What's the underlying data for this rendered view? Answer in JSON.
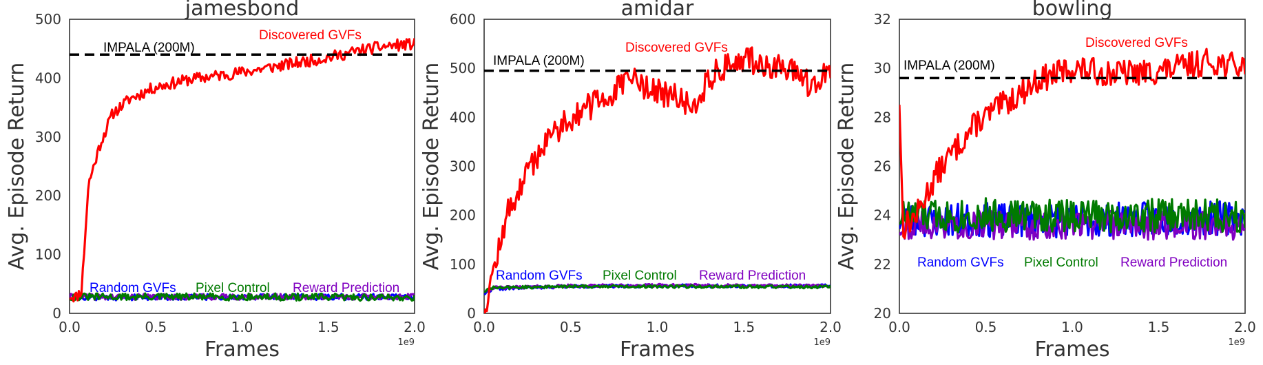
{
  "chart_data": [
    {
      "type": "line",
      "title": "jamesbond",
      "xlabel": "Frames",
      "ylabel": "Avg. Episode Return",
      "x_scale_label": "1e9",
      "xlim": [
        0,
        2.0
      ],
      "ylim": [
        0,
        500
      ],
      "xticks": [
        "0.0",
        "0.5",
        "1.0",
        "1.5",
        "2.0"
      ],
      "yticks": [
        "0",
        "100",
        "200",
        "300",
        "400",
        "500"
      ],
      "baseline": {
        "label": "IMPALA (200M)",
        "value": 440,
        "color": "#000000"
      },
      "series": [
        {
          "name": "Discovered GVFs",
          "color": "#ff0000",
          "noise": 10,
          "seed": 11,
          "points": [
            [
              0.0,
              30
            ],
            [
              0.04,
              28
            ],
            [
              0.07,
              40
            ],
            [
              0.09,
              130
            ],
            [
              0.11,
              220
            ],
            [
              0.13,
              240
            ],
            [
              0.18,
              290
            ],
            [
              0.25,
              340
            ],
            [
              0.35,
              365
            ],
            [
              0.5,
              385
            ],
            [
              0.7,
              398
            ],
            [
              1.0,
              410
            ],
            [
              1.3,
              425
            ],
            [
              1.5,
              435
            ],
            [
              1.7,
              448
            ],
            [
              1.85,
              455
            ],
            [
              2.0,
              458
            ]
          ]
        },
        {
          "name": "Random GVFs",
          "color": "#0000ff",
          "noise": 5,
          "seed": 21,
          "points": [
            [
              0.0,
              27
            ],
            [
              1.0,
              28
            ],
            [
              2.0,
              28
            ]
          ]
        },
        {
          "name": "Pixel Control",
          "color": "#007a00",
          "noise": 6,
          "seed": 31,
          "points": [
            [
              0.0,
              28
            ],
            [
              1.0,
              28
            ],
            [
              2.0,
              27
            ]
          ]
        },
        {
          "name": "Reward Prediction",
          "color": "#8000c0",
          "noise": 5,
          "seed": 41,
          "points": [
            [
              0.0,
              28
            ],
            [
              1.0,
              28
            ],
            [
              2.0,
              28
            ]
          ]
        }
      ]
    },
    {
      "type": "line",
      "title": "amidar",
      "xlabel": "Frames",
      "ylabel": "Avg. Episode Return",
      "x_scale_label": "1e9",
      "xlim": [
        0,
        2.0
      ],
      "ylim": [
        0,
        600
      ],
      "xticks": [
        "0.0",
        "0.5",
        "1.0",
        "1.5",
        "2.0"
      ],
      "yticks": [
        "0",
        "100",
        "200",
        "300",
        "400",
        "500",
        "600"
      ],
      "baseline": {
        "label": "IMPALA (200M)",
        "value": 495,
        "color": "#000000"
      },
      "series": [
        {
          "name": "Discovered GVFs",
          "color": "#ff0000",
          "noise": 28,
          "seed": 12,
          "points": [
            [
              0.0,
              0
            ],
            [
              0.03,
              60
            ],
            [
              0.08,
              120
            ],
            [
              0.13,
              200
            ],
            [
              0.2,
              250
            ],
            [
              0.3,
              320
            ],
            [
              0.4,
              370
            ],
            [
              0.5,
              400
            ],
            [
              0.6,
              420
            ],
            [
              0.75,
              450
            ],
            [
              0.85,
              480
            ],
            [
              1.0,
              450
            ],
            [
              1.1,
              440
            ],
            [
              1.2,
              420
            ],
            [
              1.3,
              480
            ],
            [
              1.4,
              505
            ],
            [
              1.5,
              520
            ],
            [
              1.6,
              510
            ],
            [
              1.8,
              490
            ],
            [
              1.9,
              460
            ],
            [
              2.0,
              500
            ]
          ]
        },
        {
          "name": "Random GVFs",
          "color": "#0000ff",
          "noise": 3,
          "seed": 22,
          "points": [
            [
              0.0,
              40
            ],
            [
              0.05,
              50
            ],
            [
              0.5,
              55
            ],
            [
              1.0,
              56
            ],
            [
              2.0,
              56
            ]
          ]
        },
        {
          "name": "Pixel Control",
          "color": "#007a00",
          "noise": 3,
          "seed": 32,
          "points": [
            [
              0.0,
              45
            ],
            [
              0.05,
              52
            ],
            [
              0.5,
              55
            ],
            [
              1.0,
              55
            ],
            [
              2.0,
              54
            ]
          ]
        },
        {
          "name": "Reward Prediction",
          "color": "#8000c0",
          "noise": 3,
          "seed": 42,
          "points": [
            [
              0.0,
              45
            ],
            [
              0.05,
              52
            ],
            [
              0.5,
              56
            ],
            [
              1.0,
              57
            ],
            [
              2.0,
              56
            ]
          ]
        }
      ]
    },
    {
      "type": "line",
      "title": "bowling",
      "xlabel": "Frames",
      "ylabel": "Avg. Episode Return",
      "x_scale_label": "1e9",
      "xlim": [
        0,
        2.0
      ],
      "ylim": [
        20,
        32
      ],
      "xticks": [
        "0.0",
        "0.5",
        "1.0",
        "1.5",
        "2.0"
      ],
      "yticks": [
        "20",
        "22",
        "24",
        "26",
        "28",
        "30",
        "32"
      ],
      "baseline": {
        "label": "IMPALA (200M)",
        "value": 29.6,
        "color": "#000000"
      },
      "series": [
        {
          "name": "Discovered GVFs",
          "color": "#ff0000",
          "noise": 0.55,
          "seed": 13,
          "points": [
            [
              0.0,
              28.8
            ],
            [
              0.02,
              23.5
            ],
            [
              0.1,
              24.0
            ],
            [
              0.2,
              25.5
            ],
            [
              0.3,
              26.5
            ],
            [
              0.45,
              27.8
            ],
            [
              0.6,
              28.5
            ],
            [
              0.8,
              29.5
            ],
            [
              1.0,
              30.0
            ],
            [
              1.2,
              29.8
            ],
            [
              1.4,
              29.8
            ],
            [
              1.6,
              30.0
            ],
            [
              1.8,
              30.3
            ],
            [
              2.0,
              30.0
            ]
          ]
        },
        {
          "name": "Random GVFs",
          "color": "#0000ff",
          "noise": 0.7,
          "seed": 23,
          "points": [
            [
              0.0,
              23.8
            ],
            [
              1.0,
              23.8
            ],
            [
              2.0,
              23.9
            ]
          ]
        },
        {
          "name": "Pixel Control",
          "color": "#007a00",
          "noise": 0.7,
          "seed": 33,
          "points": [
            [
              0.0,
              24.0
            ],
            [
              1.0,
              24.0
            ],
            [
              2.0,
              24.0
            ]
          ]
        },
        {
          "name": "Reward Prediction",
          "color": "#8000c0",
          "noise": 0.6,
          "seed": 43,
          "points": [
            [
              0.0,
              23.6
            ],
            [
              1.0,
              23.6
            ],
            [
              2.0,
              23.6
            ]
          ]
        }
      ]
    }
  ]
}
